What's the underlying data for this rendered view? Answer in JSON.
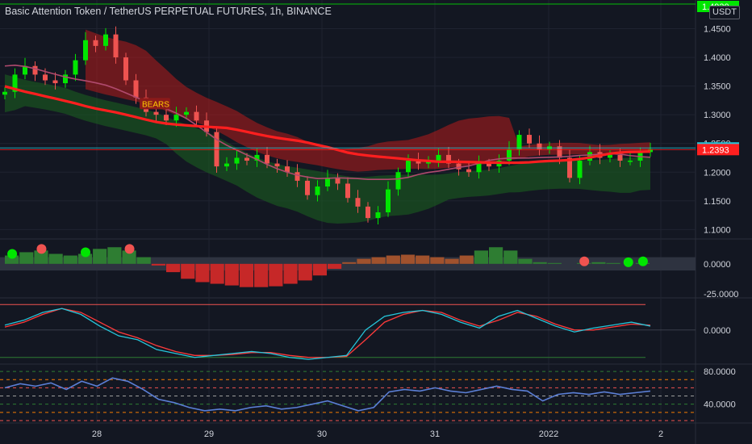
{
  "title": "Basic Attention Token / TetherUS PERPETUAL FUTURES, 1h, BINANCE",
  "quote_currency": "USDT",
  "colors": {
    "background": "#131722",
    "up": "#26a69a",
    "up_bright": "#00e600",
    "down": "#ef5350",
    "cloud_red": "#b71c1c",
    "cloud_green": "#1b5e20",
    "grid": "#2a2e39",
    "pink_ma": "#b04a6e",
    "red_ma": "#ff1f1f",
    "macd_line": "#26c6da",
    "signal_line": "#ff3b3b",
    "rsi_line": "#5b7fd6"
  },
  "chart_data": [
    {
      "type": "candlestick",
      "pane": "price",
      "title": "Basic Attention Token / TetherUS PERPETUAL FUTURES, 1h, BINANCE",
      "y_ticks": [
        1.1,
        1.15,
        1.2,
        1.25,
        1.3,
        1.35,
        1.4,
        1.45
      ],
      "y_tick_labels": [
        "1.1000",
        "1.1500",
        "1.2000",
        "1.2500",
        "1.3000",
        "1.3500",
        "1.4000",
        "1.4500"
      ],
      "ylim": [
        1.085,
        1.5
      ],
      "x_tick_labels": [
        "28",
        "29",
        "30",
        "31",
        "2022",
        "2"
      ],
      "price_labels": [
        {
          "value": 1.493,
          "text": "1.4930",
          "color": "#00e600"
        },
        {
          "value": 1.2422,
          "text": "1.2422",
          "color": "#26c6da"
        },
        {
          "value": 1.2393,
          "text": "1.2393",
          "color": "#ff1f1f"
        }
      ],
      "annotation": "BEARS",
      "close_path": [
        1.34,
        1.37,
        1.385,
        1.37,
        1.36,
        1.355,
        1.37,
        1.395,
        1.43,
        1.42,
        1.44,
        1.4,
        1.36,
        1.33,
        1.305,
        1.3,
        1.29,
        1.3,
        1.305,
        1.29,
        1.27,
        1.21,
        1.215,
        1.225,
        1.22,
        1.23,
        1.215,
        1.21,
        1.2,
        1.185,
        1.16,
        1.175,
        1.19,
        1.18,
        1.155,
        1.14,
        1.12,
        1.13,
        1.17,
        1.2,
        1.22,
        1.215,
        1.22,
        1.23,
        1.215,
        1.205,
        1.2,
        1.215,
        1.21,
        1.22,
        1.24,
        1.265,
        1.25,
        1.24,
        1.245,
        1.225,
        1.19,
        1.22,
        1.235,
        1.225,
        1.23,
        1.22,
        1.22,
        1.235,
        1.24
      ]
    },
    {
      "type": "bar",
      "pane": "histogram",
      "y_tick_labels": [
        "0.0000",
        "-25.0000"
      ],
      "values": [
        10,
        14,
        16,
        12,
        10,
        12,
        18,
        20,
        16,
        8,
        -2,
        -10,
        -18,
        -22,
        -24,
        -26,
        -28,
        -28,
        -27,
        -24,
        -20,
        -14,
        -6,
        2,
        6,
        8,
        10,
        11,
        10,
        8,
        6,
        10,
        16,
        20,
        16,
        6,
        2,
        1,
        0,
        1,
        2,
        1,
        0,
        1
      ],
      "ylim": [
        -40,
        28
      ]
    },
    {
      "type": "line",
      "pane": "oscillator",
      "y_tick_labels": [
        "0.0000"
      ],
      "series": [
        {
          "values": [
            5,
            10,
            18,
            22,
            16,
            4,
            -6,
            -10,
            -20,
            -24,
            -28,
            -26,
            -24,
            -22,
            -24,
            -28,
            -30,
            -28,
            -26,
            0,
            14,
            18,
            20,
            16,
            8,
            2,
            14,
            20,
            12,
            4,
            -2,
            2,
            5,
            8,
            4
          ]
        },
        {
          "values": [
            3,
            8,
            16,
            22,
            18,
            8,
            -2,
            -8,
            -16,
            -22,
            -26,
            -26,
            -25,
            -23,
            -23,
            -26,
            -28,
            -28,
            -27,
            -10,
            8,
            16,
            20,
            18,
            10,
            4,
            10,
            18,
            14,
            6,
            0,
            0,
            3,
            6,
            5
          ]
        }
      ],
      "ylim": [
        -34,
        32
      ]
    },
    {
      "type": "line",
      "pane": "rsi",
      "y_tick_labels": [
        "80.0000",
        "40.0000"
      ],
      "series": [
        {
          "values": [
            60,
            65,
            62,
            66,
            58,
            68,
            62,
            72,
            68,
            58,
            46,
            42,
            36,
            32,
            34,
            32,
            36,
            38,
            34,
            36,
            40,
            44,
            38,
            32,
            36,
            55,
            58,
            56,
            60,
            56,
            54,
            58,
            62,
            58,
            56,
            44,
            52,
            54,
            52,
            55,
            52,
            54,
            56
          ]
        }
      ],
      "ylim": [
        18,
        88
      ]
    }
  ]
}
